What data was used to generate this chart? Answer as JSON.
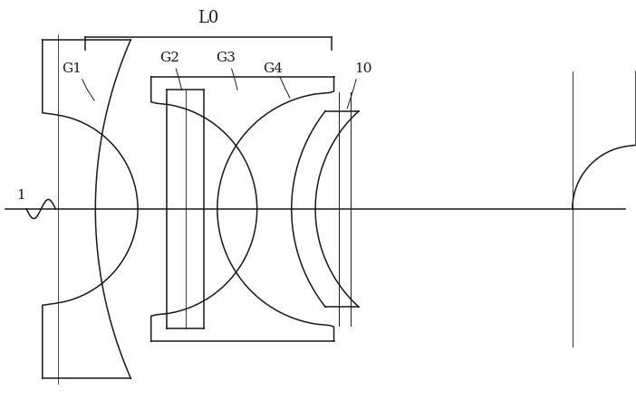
{
  "bg_color": "#ffffff",
  "line_color": "#1a1a1a",
  "lw": 1.1,
  "thin_lw": 0.7,
  "figsize": [
    7.02,
    4.62
  ],
  "dpi": 100,
  "label_1": "1",
  "label_L0": "L0",
  "labels": [
    "G1",
    "G2",
    "G3",
    "G4",
    "10"
  ],
  "xlim": [
    -0.5,
    11.5
  ],
  "ylim": [
    -3.5,
    3.5
  ]
}
